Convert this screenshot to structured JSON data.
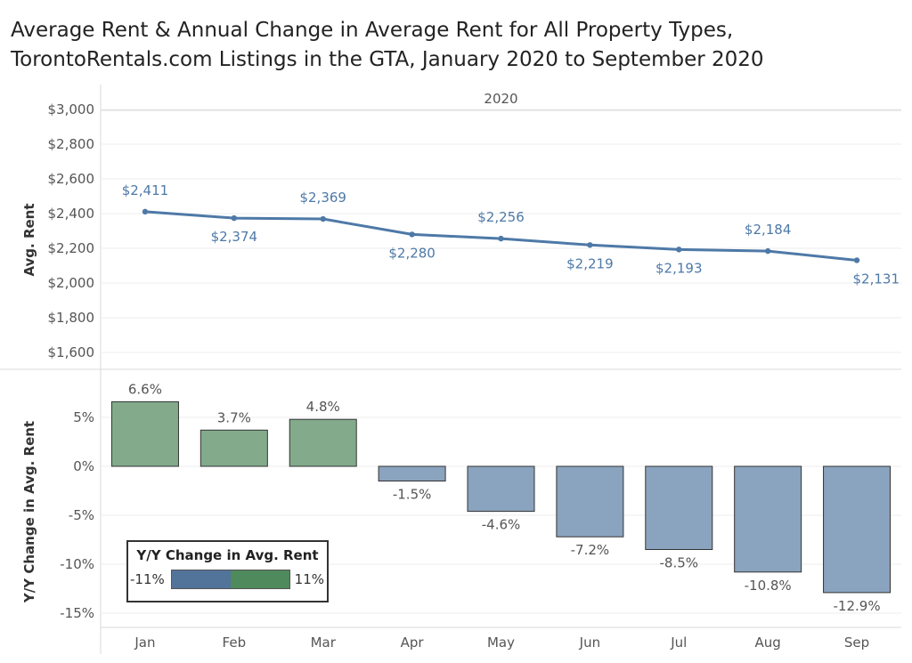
{
  "title_line1": "Average Rent & Annual Change in Average Rent for All Property Types,",
  "title_line2": "TorontoRentals.com Listings in the GTA, January 2020 to September 2020",
  "legend": {
    "title": "Y/Y Change in Avg. Rent",
    "min_label": "-11%",
    "max_label": "11%",
    "neg_color": "#52739a",
    "pos_color": "#4f8a5c"
  },
  "chart_data": [
    {
      "type": "line",
      "column_header": "2020",
      "ylabel": "Avg. Rent",
      "x": [
        "Jan",
        "Feb",
        "Mar",
        "Apr",
        "May",
        "Jun",
        "Jul",
        "Aug",
        "Sep"
      ],
      "values": [
        2411,
        2374,
        2369,
        2280,
        2256,
        2219,
        2193,
        2184,
        2131
      ],
      "point_labels": [
        "$2,411",
        "$2,374",
        "$2,369",
        "$2,280",
        "$2,256",
        "$2,219",
        "$2,193",
        "$2,184",
        "$2,131"
      ],
      "label_positions": [
        "above",
        "below",
        "above",
        "below",
        "above",
        "below",
        "below",
        "above",
        "below"
      ],
      "ylim": [
        1500,
        3000
      ],
      "yticks": [
        1600,
        1800,
        2000,
        2200,
        2400,
        2600,
        2800,
        3000
      ],
      "ytick_labels": [
        "$1,600",
        "$1,800",
        "$2,000",
        "$2,200",
        "$2,400",
        "$2,600",
        "$2,800",
        "$3,000"
      ],
      "color": "#4e79a7",
      "grid": true
    },
    {
      "type": "bar",
      "ylabel": "Y/Y Change in Avg. Rent",
      "categories": [
        "Jan",
        "Feb",
        "Mar",
        "Apr",
        "May",
        "Jun",
        "Jul",
        "Aug",
        "Sep"
      ],
      "values": [
        6.6,
        3.7,
        4.8,
        -1.5,
        -4.6,
        -7.2,
        -8.5,
        -10.8,
        -12.9
      ],
      "value_labels": [
        "6.6%",
        "3.7%",
        "4.8%",
        "-1.5%",
        "-4.6%",
        "-7.2%",
        "-8.5%",
        "-10.8%",
        "-12.9%"
      ],
      "ylim": [
        -16,
        9
      ],
      "yticks": [
        5,
        0,
        -5,
        -10,
        -15
      ],
      "ytick_labels": [
        "5%",
        "0%",
        "-5%",
        "-10%",
        "-15%"
      ],
      "pos_color": "#82aa8b",
      "neg_color": "#8aa3be",
      "grid": true
    }
  ]
}
